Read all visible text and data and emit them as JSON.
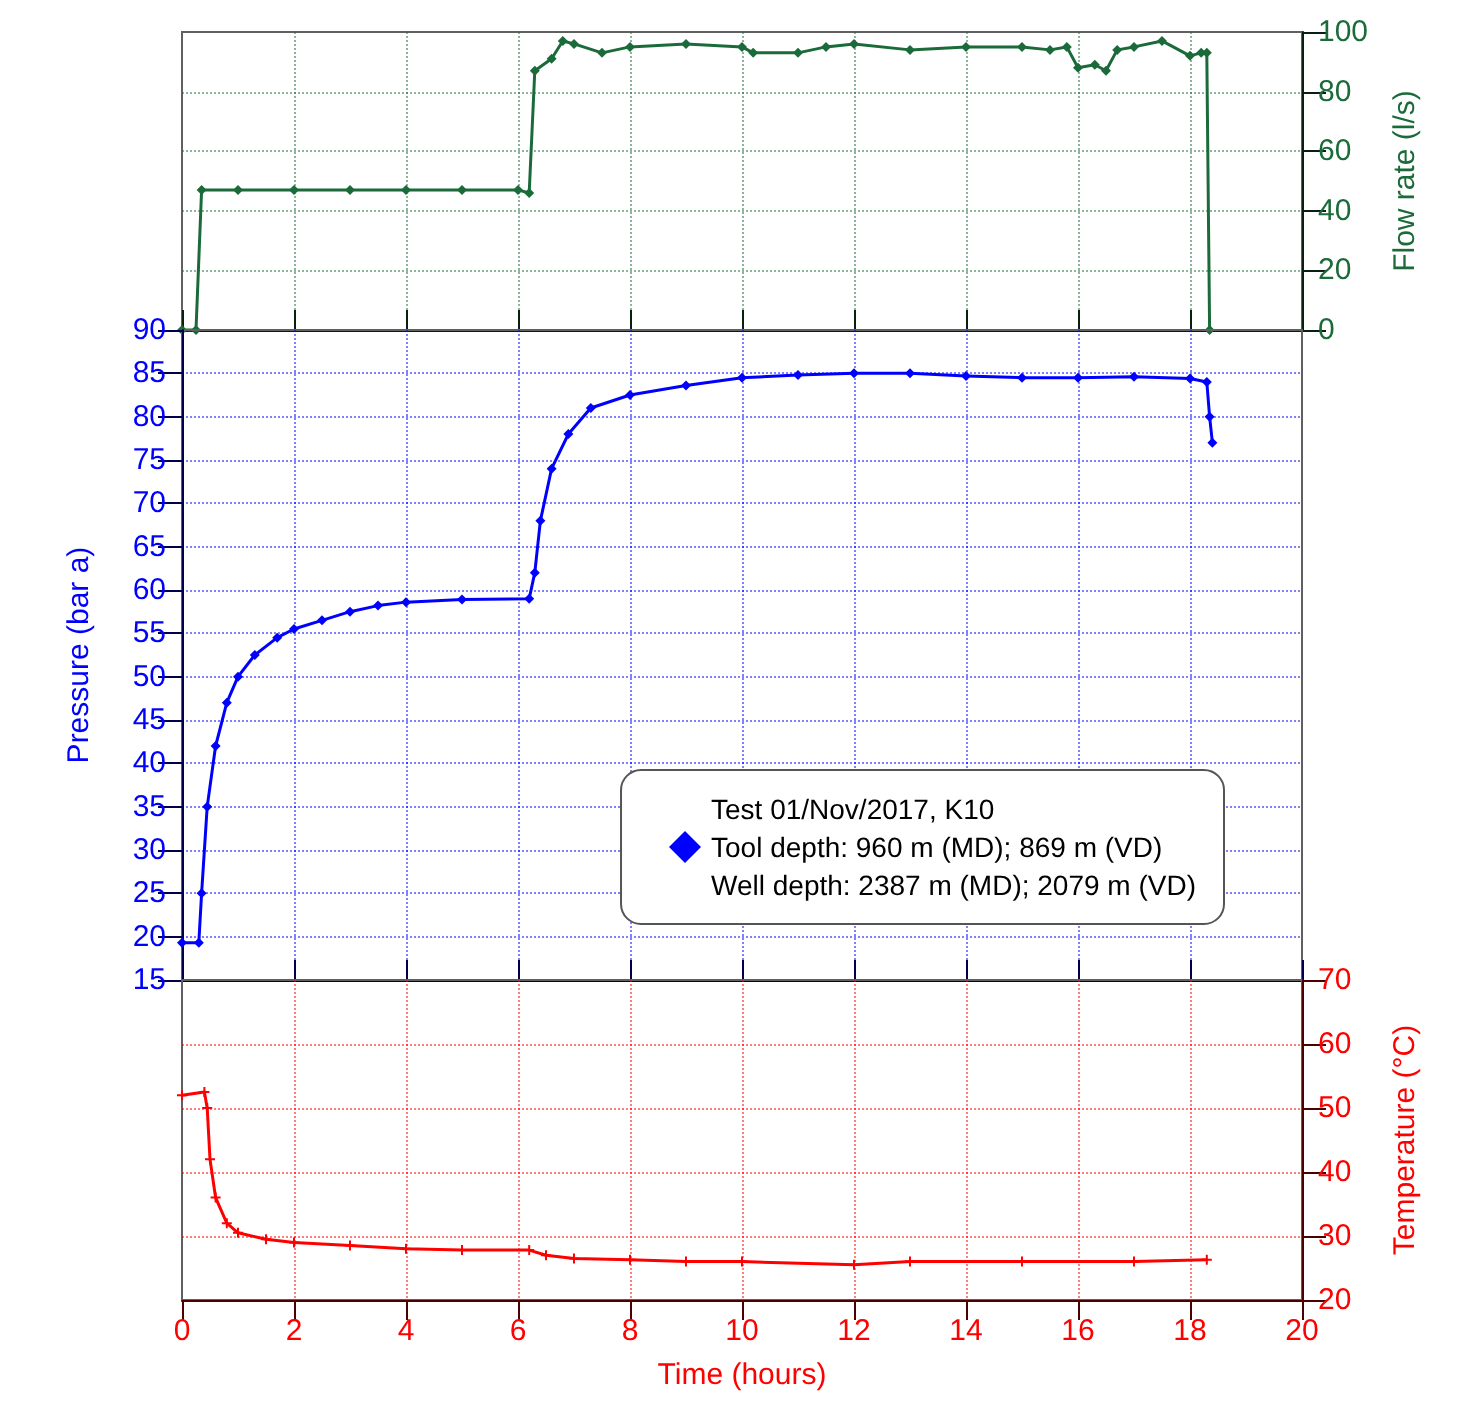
{
  "chart_data": [
    {
      "type": "line",
      "y2label": "Flow rate (l/s)",
      "xlim": [
        0,
        20
      ],
      "xticks": [
        0,
        2,
        4,
        6,
        8,
        10,
        12,
        14,
        16,
        18,
        20
      ],
      "y2lim": [
        0,
        100
      ],
      "y2ticks": [
        0,
        20,
        40,
        60,
        80,
        100
      ],
      "grid": true,
      "tick_labels": "y",
      "marker": "diamond",
      "line_style": "solid",
      "series": [
        {
          "color": "#1b6b3a",
          "axis": "y2",
          "x": [
            0,
            0.25,
            0.35,
            1,
            2,
            3,
            4,
            5,
            6,
            6.2,
            6.3,
            6.6,
            6.8,
            7,
            7.5,
            8,
            9,
            10,
            10.2,
            11,
            11.5,
            12,
            13,
            14,
            15,
            15.5,
            15.8,
            16,
            16.3,
            16.5,
            16.7,
            17,
            17.5,
            18,
            18.2,
            18.3,
            18.35
          ],
          "values": [
            0,
            0,
            47,
            47,
            47,
            47,
            47,
            47,
            47,
            46,
            87,
            91,
            97,
            96,
            93,
            95,
            96,
            95,
            93,
            93,
            95,
            96,
            94,
            95,
            95,
            94,
            95,
            88,
            89,
            87,
            94,
            95,
            97,
            92,
            93,
            93,
            0
          ]
        }
      ]
    },
    {
      "type": "line",
      "ylabel": "Pressure (bar a)",
      "xlim": [
        0,
        20
      ],
      "xticks": [
        0,
        2,
        4,
        6,
        8,
        10,
        12,
        14,
        16,
        18,
        20
      ],
      "ylim": [
        15,
        90
      ],
      "yticks": [
        15,
        20,
        25,
        30,
        35,
        40,
        45,
        50,
        55,
        60,
        65,
        70,
        75,
        80,
        85,
        90
      ],
      "grid": true,
      "tick_labels": "y",
      "marker": "diamond",
      "line_style": "solid",
      "legend": "bottom right",
      "series": [
        {
          "name": "Test 01/Nov/2017, K10\nTool depth: 960 m (MD); 869 m (VD)\nWell depth: 2387 m (MD); 2079 m (VD)",
          "color": "#0000ff",
          "x": [
            0,
            0.3,
            0.35,
            0.45,
            0.6,
            0.8,
            1,
            1.3,
            1.7,
            2,
            2.5,
            3,
            3.5,
            4,
            5,
            6.2,
            6.3,
            6.4,
            6.6,
            6.9,
            7.3,
            8,
            9,
            10,
            11,
            12,
            13,
            14,
            15,
            16,
            17,
            18,
            18.3,
            18.35,
            18.4
          ],
          "values": [
            19.3,
            19.3,
            25,
            35,
            42,
            47,
            50,
            52.5,
            54.5,
            55.5,
            56.5,
            57.5,
            58.2,
            58.6,
            58.9,
            59,
            62,
            68,
            74,
            78,
            81,
            82.5,
            83.6,
            84.5,
            84.8,
            85,
            85,
            84.7,
            84.5,
            84.5,
            84.6,
            84.4,
            84,
            80,
            77
          ]
        }
      ]
    },
    {
      "type": "line",
      "xlabel": "Time (hours)",
      "y2label": "Temperature (°C)",
      "xlim": [
        0,
        20
      ],
      "xticks": [
        0,
        2,
        4,
        6,
        8,
        10,
        12,
        14,
        16,
        18,
        20
      ],
      "y2lim": [
        20,
        70
      ],
      "y2ticks": [
        20,
        30,
        40,
        50,
        60,
        70
      ],
      "grid": true,
      "marker": "cross",
      "line_style": "solid",
      "series": [
        {
          "color": "#ff0000",
          "axis": "y2",
          "x": [
            0,
            0.4,
            0.45,
            0.5,
            0.6,
            0.8,
            1,
            1.5,
            2,
            3,
            4,
            5,
            6.2,
            6.5,
            7,
            8,
            9,
            10,
            12,
            13,
            15,
            17,
            18.3
          ],
          "values": [
            52,
            52.5,
            50,
            42,
            36,
            32,
            30.5,
            29.5,
            29,
            28.5,
            28,
            27.8,
            27.8,
            27,
            26.5,
            26.3,
            26,
            26,
            25.5,
            26,
            26,
            26,
            26.3
          ]
        }
      ]
    }
  ]
}
